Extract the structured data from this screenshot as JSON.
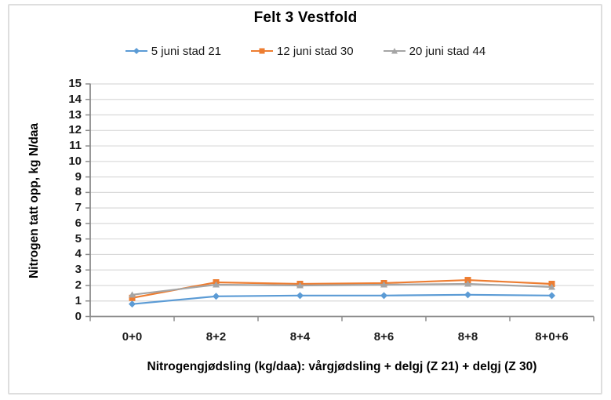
{
  "frame": {
    "background": "#FFFFFF",
    "border_color": "#DEDEDE"
  },
  "chart_data": {
    "type": "line",
    "title": "Felt 3 Vestfold",
    "categories": [
      "0+0",
      "8+2",
      "8+4",
      "8+6",
      "8+8",
      "8+0+6"
    ],
    "series": [
      {
        "name": "5 juni stad 21",
        "marker": "diamond",
        "color": "#5B9BD5",
        "values": [
          0.8,
          1.3,
          1.35,
          1.35,
          1.4,
          1.35
        ]
      },
      {
        "name": "12 juni stad 30",
        "marker": "square",
        "color": "#ED7D31",
        "values": [
          1.2,
          2.2,
          2.1,
          2.15,
          2.35,
          2.1
        ]
      },
      {
        "name": "20 juni stad 44",
        "marker": "triangle",
        "color": "#A5A5A5",
        "values": [
          1.4,
          2.05,
          2.0,
          2.05,
          2.1,
          1.9
        ]
      }
    ],
    "xlabel": "Nitrogengjødsling (kg/daa): vårgjødsling + delgj (Z 21) + delgj (Z 30)",
    "ylabel": "Nitrogen tatt opp, kg N/daa",
    "ylim": [
      0,
      15
    ],
    "yticks": [
      0,
      1,
      2,
      3,
      4,
      5,
      6,
      7,
      8,
      9,
      10,
      11,
      12,
      13,
      14,
      15
    ],
    "grid": true,
    "legend_position": "top",
    "colors": {
      "gridline": "#D9D9D9",
      "axis": "#8C8C8C",
      "tick_text": "#1A1A1A",
      "title_text": "#000000"
    }
  }
}
